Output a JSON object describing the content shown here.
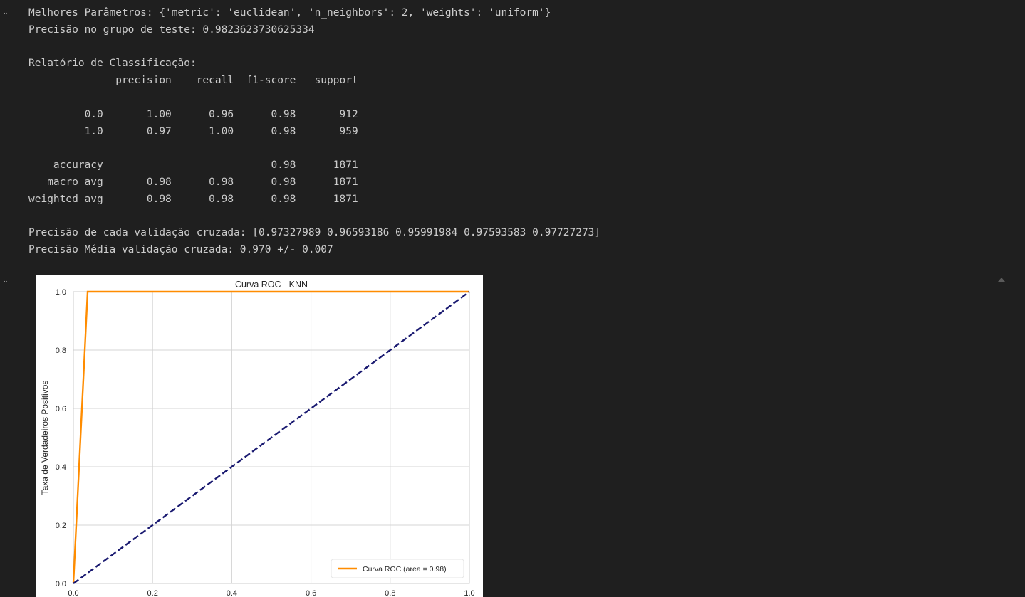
{
  "output_text": {
    "lines": [
      "Melhores Parâmetros: {'metric': 'euclidean', 'n_neighbors': 2, 'weights': 'uniform'}",
      "Precisão no grupo de teste: 0.9823623730625334",
      "",
      "Relatório de Classificação:",
      "              precision    recall  f1-score   support",
      "",
      "         0.0       1.00      0.96      0.98       912",
      "         1.0       0.97      1.00      0.98       959",
      "",
      "    accuracy                           0.98      1871",
      "   macro avg       0.98      0.98      0.98      1871",
      "weighted avg       0.98      0.98      0.98      1871",
      "",
      "Precisão de cada validação cruzada: [0.97327989 0.96593186 0.95991984 0.97593583 0.97727273]",
      "Precisão Média validação cruzada: 0.970 +/- 0.007"
    ]
  },
  "gutter": {
    "text_output_marker": "··",
    "image_output_marker": "··"
  },
  "chart_data": {
    "type": "line",
    "title": "Curva ROC - KNN",
    "xlabel": "",
    "ylabel": "Taxa de Verdadeiros Positivos",
    "xlim": [
      0.0,
      1.0
    ],
    "ylim": [
      0.0,
      1.0
    ],
    "x_ticks": [
      "0.0",
      "0.2",
      "0.4",
      "0.6",
      "0.8",
      "1.0"
    ],
    "y_ticks": [
      "0.0",
      "0.2",
      "0.4",
      "0.6",
      "0.8",
      "1.0"
    ],
    "grid": true,
    "legend_position": "lower-right",
    "series": [
      {
        "name": "Curva ROC (area = 0.98)",
        "color": "#ff8c00",
        "style": "solid",
        "x": [
          0.0,
          0.036,
          1.0
        ],
        "y": [
          0.0,
          1.0,
          1.0
        ]
      },
      {
        "color": "#191970",
        "style": "dashed",
        "x": [
          0.0,
          1.0
        ],
        "y": [
          0.0,
          1.0
        ]
      }
    ]
  },
  "colors": {
    "background": "#1f1f1f",
    "text": "#cccccc",
    "grid": "#d4d4d4",
    "axes_edge": "#cccccc"
  }
}
